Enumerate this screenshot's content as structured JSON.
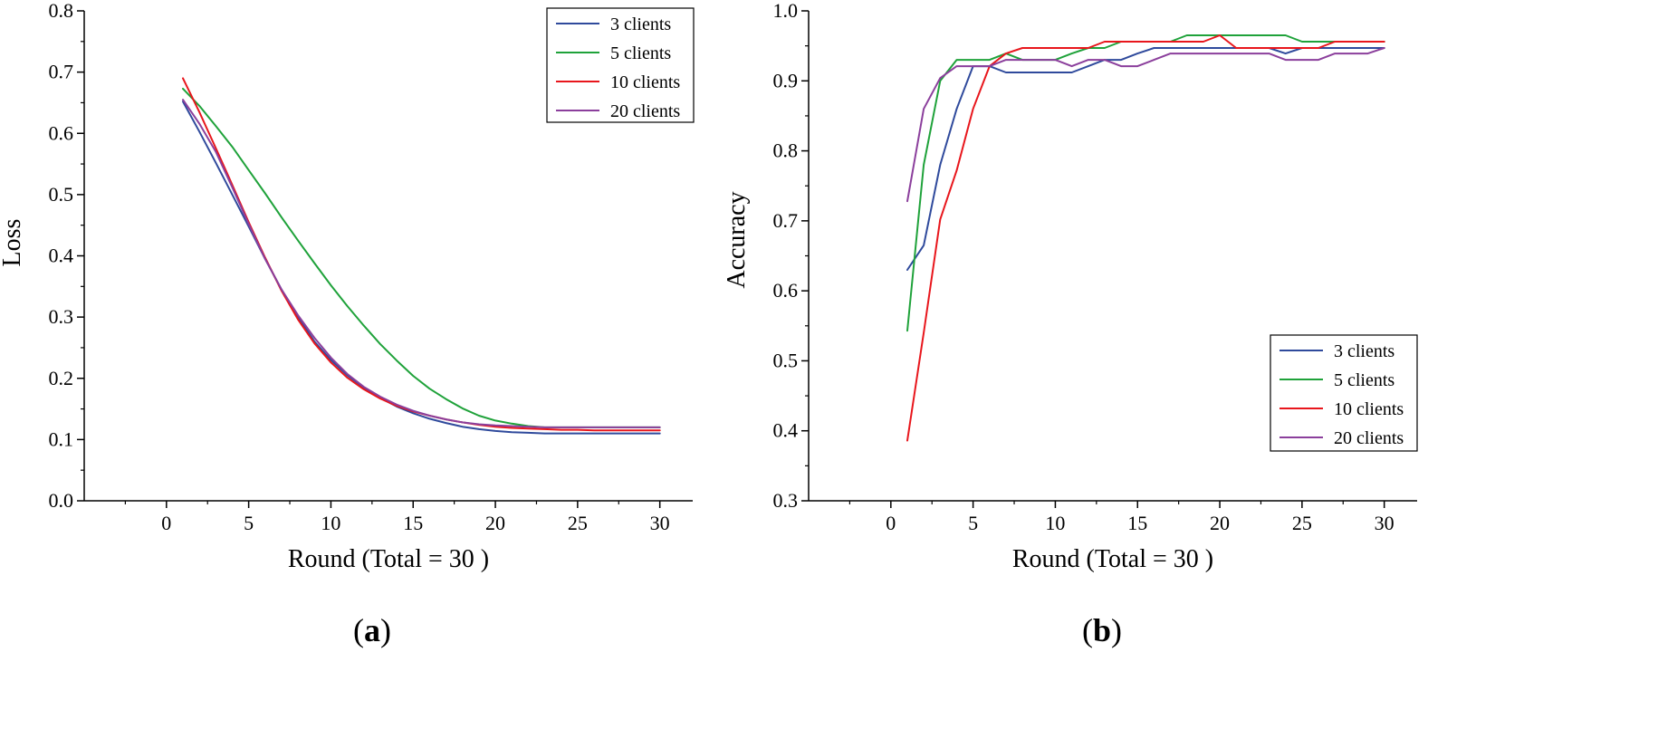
{
  "chart_data": [
    {
      "id": "a",
      "type": "line",
      "panel_label": {
        "open": "(",
        "letter": "a",
        "close": ")"
      },
      "title": "",
      "xlabel": "Round (Total = 30 )",
      "ylabel": "Loss",
      "xlim": [
        -5,
        32
      ],
      "ylim": [
        0.0,
        0.8
      ],
      "xticks": [
        0,
        5,
        10,
        15,
        20,
        25,
        30
      ],
      "yticks": [
        0.0,
        0.1,
        0.2,
        0.3,
        0.4,
        0.5,
        0.6,
        0.7,
        0.8
      ],
      "xtick_labels": [
        "0",
        "5",
        "10",
        "15",
        "20",
        "25",
        "30"
      ],
      "ytick_labels": [
        "0.0",
        "0.1",
        "0.2",
        "0.3",
        "0.4",
        "0.5",
        "0.6",
        "0.7",
        "0.8"
      ],
      "legend_position": "top-right",
      "x": [
        1,
        2,
        3,
        4,
        5,
        6,
        7,
        8,
        9,
        10,
        11,
        12,
        13,
        14,
        15,
        16,
        17,
        18,
        19,
        20,
        21,
        22,
        23,
        24,
        25,
        26,
        27,
        28,
        29,
        30
      ],
      "series": [
        {
          "name": "3 clients",
          "color": "#2f4a9c",
          "values": [
            0.652,
            0.603,
            0.552,
            0.5,
            0.448,
            0.395,
            0.345,
            0.3,
            0.26,
            0.23,
            0.205,
            0.185,
            0.168,
            0.154,
            0.143,
            0.134,
            0.127,
            0.121,
            0.117,
            0.114,
            0.112,
            0.111,
            0.11,
            0.11,
            0.11,
            0.11,
            0.11,
            0.11,
            0.11,
            0.11
          ]
        },
        {
          "name": "5 clients",
          "color": "#1fa23a",
          "values": [
            0.673,
            0.645,
            0.612,
            0.578,
            0.54,
            0.502,
            0.463,
            0.425,
            0.388,
            0.352,
            0.318,
            0.286,
            0.256,
            0.229,
            0.204,
            0.183,
            0.166,
            0.151,
            0.139,
            0.131,
            0.126,
            0.122,
            0.12,
            0.12,
            0.12,
            0.12,
            0.12,
            0.12,
            0.12,
            0.12
          ]
        },
        {
          "name": "10 clients",
          "color": "#e8161c",
          "values": [
            0.69,
            0.635,
            0.576,
            0.516,
            0.455,
            0.397,
            0.343,
            0.296,
            0.257,
            0.226,
            0.201,
            0.182,
            0.167,
            0.155,
            0.146,
            0.139,
            0.133,
            0.128,
            0.124,
            0.121,
            0.119,
            0.118,
            0.117,
            0.116,
            0.116,
            0.115,
            0.115,
            0.115,
            0.115,
            0.115
          ]
        },
        {
          "name": "20 clients",
          "color": "#8b3f9c",
          "values": [
            0.655,
            0.616,
            0.57,
            0.512,
            0.452,
            0.395,
            0.345,
            0.303,
            0.266,
            0.234,
            0.207,
            0.186,
            0.17,
            0.157,
            0.147,
            0.139,
            0.133,
            0.128,
            0.125,
            0.123,
            0.122,
            0.121,
            0.12,
            0.12,
            0.12,
            0.12,
            0.12,
            0.12,
            0.12,
            0.12
          ]
        }
      ]
    },
    {
      "id": "b",
      "type": "line",
      "panel_label": {
        "open": "(",
        "letter": "b",
        "close": ")"
      },
      "title": "",
      "xlabel": "Round (Total = 30 )",
      "ylabel": "Accuracy",
      "xlim": [
        -5,
        32
      ],
      "ylim": [
        0.3,
        1.0
      ],
      "xticks": [
        0,
        5,
        10,
        15,
        20,
        25,
        30
      ],
      "yticks": [
        0.3,
        0.4,
        0.5,
        0.6,
        0.7,
        0.8,
        0.9,
        1.0
      ],
      "xtick_labels": [
        "0",
        "5",
        "10",
        "15",
        "20",
        "25",
        "30"
      ],
      "ytick_labels": [
        "0.3",
        "0.4",
        "0.5",
        "0.6",
        "0.7",
        "0.8",
        "0.9",
        "1.0"
      ],
      "legend_position": "bottom-right",
      "x": [
        1,
        2,
        3,
        4,
        5,
        6,
        7,
        8,
        9,
        10,
        11,
        12,
        13,
        14,
        15,
        16,
        17,
        18,
        19,
        20,
        21,
        22,
        23,
        24,
        25,
        26,
        27,
        28,
        29,
        30
      ],
      "series": [
        {
          "name": "3 clients",
          "color": "#2f4a9c",
          "values": [
            0.63,
            0.665,
            0.78,
            0.86,
            0.921,
            0.921,
            0.912,
            0.912,
            0.912,
            0.912,
            0.912,
            0.921,
            0.93,
            0.93,
            0.939,
            0.947,
            0.947,
            0.947,
            0.947,
            0.947,
            0.947,
            0.947,
            0.947,
            0.939,
            0.947,
            0.947,
            0.947,
            0.947,
            0.947,
            0.947
          ]
        },
        {
          "name": "5 clients",
          "color": "#1fa23a",
          "values": [
            0.543,
            0.78,
            0.9,
            0.93,
            0.93,
            0.93,
            0.939,
            0.93,
            0.93,
            0.93,
            0.939,
            0.947,
            0.947,
            0.956,
            0.956,
            0.956,
            0.956,
            0.965,
            0.965,
            0.965,
            0.965,
            0.965,
            0.965,
            0.965,
            0.956,
            0.956,
            0.956,
            0.956,
            0.956,
            0.956
          ]
        },
        {
          "name": "10 clients",
          "color": "#e8161c",
          "values": [
            0.386,
            0.54,
            0.702,
            0.772,
            0.86,
            0.921,
            0.939,
            0.947,
            0.947,
            0.947,
            0.947,
            0.947,
            0.956,
            0.956,
            0.956,
            0.956,
            0.956,
            0.956,
            0.956,
            0.965,
            0.947,
            0.947,
            0.947,
            0.947,
            0.947,
            0.947,
            0.956,
            0.956,
            0.956,
            0.956
          ]
        },
        {
          "name": "20 clients",
          "color": "#8b3f9c",
          "values": [
            0.728,
            0.86,
            0.904,
            0.921,
            0.921,
            0.921,
            0.93,
            0.93,
            0.93,
            0.93,
            0.921,
            0.93,
            0.93,
            0.921,
            0.921,
            0.93,
            0.939,
            0.939,
            0.939,
            0.939,
            0.939,
            0.939,
            0.939,
            0.93,
            0.93,
            0.93,
            0.939,
            0.939,
            0.939,
            0.947
          ]
        }
      ]
    }
  ]
}
